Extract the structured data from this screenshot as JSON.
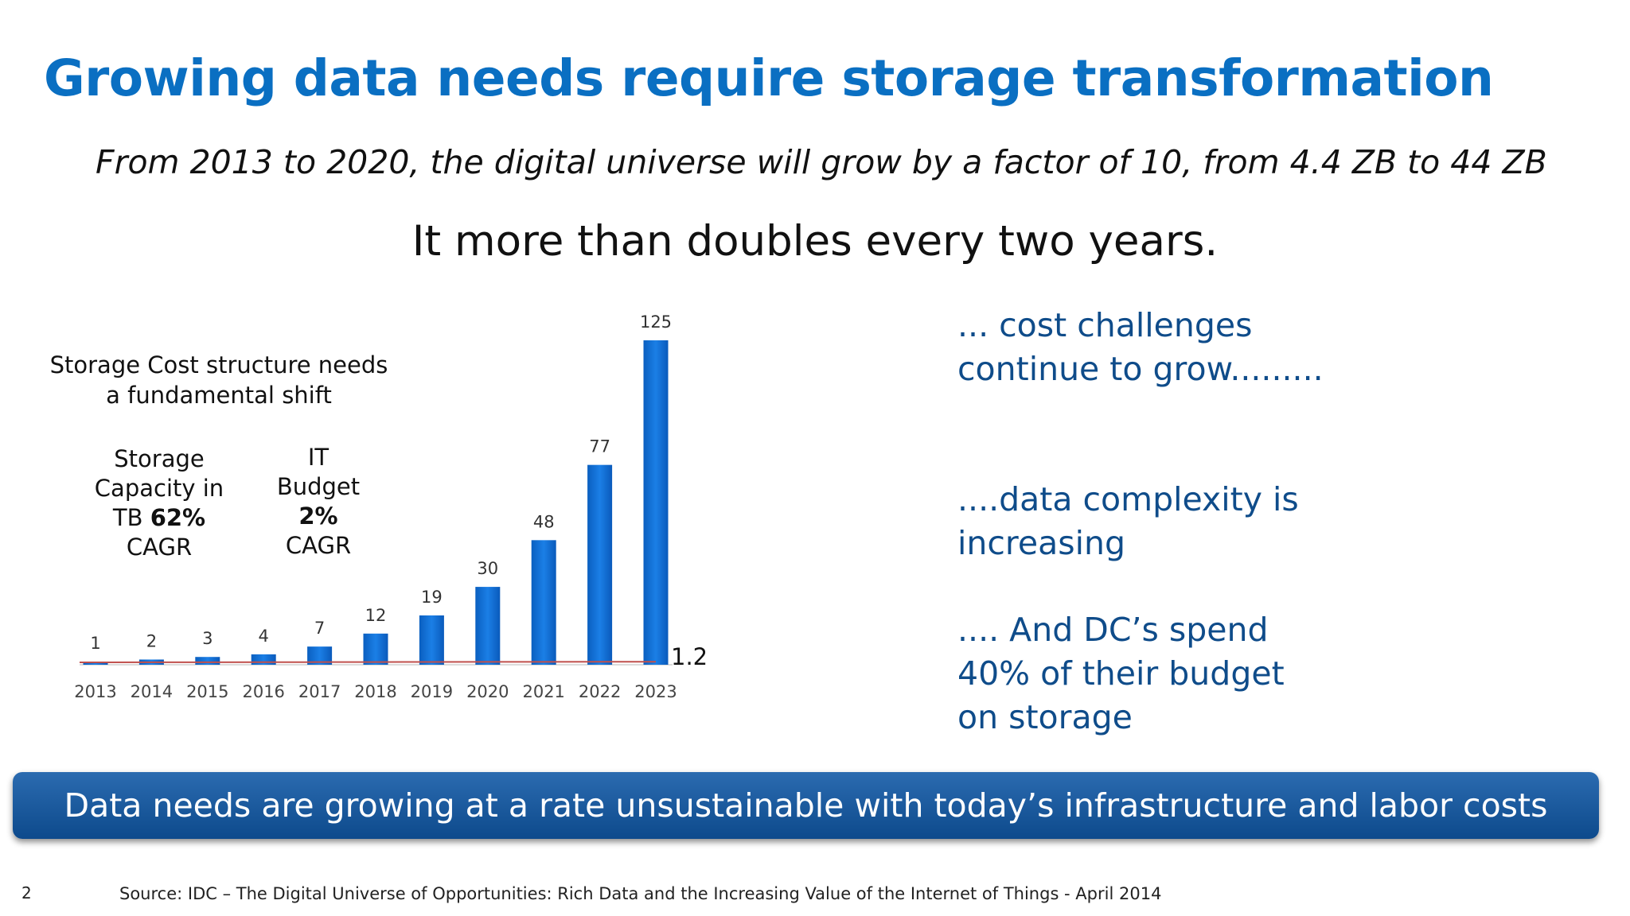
{
  "title": "Growing data needs require storage transformation",
  "subtitle": "From 2013 to 2020, the digital universe will grow by a factor of 10, from 4.4 ZB to 44 ZB",
  "tagline": "It more than doubles every two years.",
  "left_panel": {
    "cost_shift": "Storage Cost structure needs a fundamental shift",
    "storage_cagr": {
      "line1": "Storage",
      "line2": "Capacity in",
      "line3_prefix": "TB ",
      "line3_bold": "62%",
      "line4": "CAGR"
    },
    "budget_cagr": {
      "line1": "IT",
      "line2": "Budget",
      "line3_bold": "2%",
      "line4": "CAGR"
    }
  },
  "right_points": [
    "... cost challenges continue to grow.........",
    "....data complexity is increasing",
    ".... And DC’s spend 40% of their budget on storage"
  ],
  "banner": "Data needs are growing at a rate unsustainable with today’s infrastructure and labor costs",
  "page_number": "2",
  "source": "Source: IDC – The Digital Universe of Opportunities: Rich Data and the Increasing Value of the Internet of Things - April 2014",
  "colors": {
    "title": "#0a6fc2",
    "bar": "#0a6ad0",
    "budget_line": "#c0504d",
    "right_text": "#0f4c8a",
    "banner": "#1a5a9e"
  },
  "chart_data": {
    "type": "bar",
    "categories": [
      "2013",
      "2014",
      "2015",
      "2016",
      "2017",
      "2018",
      "2019",
      "2020",
      "2021",
      "2022",
      "2023"
    ],
    "series": [
      {
        "values": [
          1,
          2,
          3,
          4,
          7,
          12,
          19,
          30,
          48,
          77,
          125
        ]
      }
    ],
    "line_series": {
      "type": "line",
      "values": [
        1,
        1.02,
        1.04,
        1.06,
        1.08,
        1.1,
        1.13,
        1.15,
        1.17,
        1.19,
        1.2
      ],
      "end_label": "1.2"
    },
    "data_labels": [
      "1",
      "2",
      "3",
      "4",
      "7",
      "12",
      "19",
      "30",
      "48",
      "77",
      "125"
    ],
    "ylim": [
      0,
      125
    ],
    "grid": false,
    "legend": "none"
  }
}
